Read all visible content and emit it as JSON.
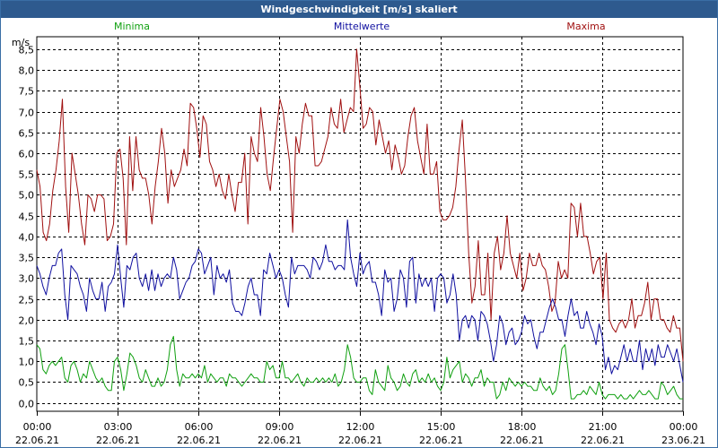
{
  "window": {
    "title": "Windgeschwindigkeit [m/s] skaliert"
  },
  "chart_data": {
    "type": "line",
    "title": "Windgeschwindigkeit [m/s] skaliert",
    "ylabel": "m/s",
    "ylim": [
      -0.2,
      8.8
    ],
    "yticks": [
      0.0,
      0.5,
      1.0,
      1.5,
      2.0,
      2.5,
      3.0,
      3.5,
      4.0,
      4.5,
      5.0,
      5.5,
      6.0,
      6.5,
      7.0,
      7.5,
      8.0,
      8.5
    ],
    "ytick_labels": [
      "0,0",
      "0,5",
      "1,0",
      "1,5",
      "2,0",
      "2,5",
      "3,0",
      "3,5",
      "4,0",
      "4,5",
      "5,0",
      "5,5",
      "6,0",
      "6,5",
      "7,0",
      "7,5",
      "8,0",
      "8,5"
    ],
    "xlim": [
      0,
      24
    ],
    "xticks": [
      0,
      3,
      6,
      9,
      12,
      15,
      18,
      21,
      24
    ],
    "xtick_times": [
      "00:00",
      "03:00",
      "06:00",
      "09:00",
      "12:00",
      "15:00",
      "18:00",
      "21:00",
      "00:00"
    ],
    "xtick_dates": [
      "22.06.21",
      "22.06.21",
      "22.06.21",
      "22.06.21",
      "22.06.21",
      "22.06.21",
      "22.06.21",
      "22.06.21",
      "23.06.21"
    ],
    "grid": true,
    "legend_position": "top",
    "series": [
      {
        "name": "Maxima",
        "color": "#a01010",
        "values": [
          5.6,
          5.2,
          4.1,
          3.9,
          4.3,
          5.1,
          5.6,
          6.3,
          7.3,
          5.2,
          4.1,
          6.0,
          5.5,
          5.0,
          4.3,
          3.8,
          5.0,
          4.9,
          4.6,
          5.0,
          5.0,
          4.9,
          3.9,
          4.0,
          4.3,
          6.0,
          6.1,
          5.4,
          3.8,
          6.4,
          5.1,
          6.4,
          5.6,
          5.4,
          5.4,
          5.0,
          4.3,
          5.2,
          5.8,
          6.6,
          6.0,
          4.8,
          5.6,
          5.2,
          5.4,
          5.6,
          6.1,
          5.7,
          7.2,
          7.1,
          6.6,
          5.9,
          6.9,
          6.7,
          5.8,
          5.6,
          5.2,
          5.5,
          5.1,
          4.9,
          5.5,
          5.0,
          4.6,
          5.3,
          5.3,
          6.0,
          4.3,
          6.4,
          6.0,
          5.8,
          7.1,
          6.4,
          5.5,
          5.1,
          5.9,
          6.6,
          7.3,
          7.0,
          6.4,
          5.8,
          4.1,
          6.4,
          6.0,
          6.7,
          7.2,
          6.9,
          6.9,
          5.7,
          5.7,
          5.8,
          6.1,
          6.4,
          7.1,
          6.7,
          6.6,
          7.3,
          6.5,
          6.8,
          7.1,
          7.0,
          8.5,
          7.6,
          6.6,
          6.7,
          7.1,
          7.0,
          6.2,
          6.8,
          6.4,
          6.0,
          6.3,
          5.6,
          6.2,
          5.9,
          5.5,
          5.7,
          6.4,
          6.9,
          7.1,
          6.3,
          5.9,
          5.5,
          6.7,
          5.5,
          5.5,
          5.8,
          4.6,
          4.4,
          4.4,
          4.5,
          4.7,
          5.2,
          6.1,
          6.8,
          5.4,
          3.6,
          2.4,
          2.8,
          3.9,
          2.6,
          2.6,
          3.6,
          2.0,
          3.6,
          4.0,
          3.2,
          3.6,
          4.5,
          3.6,
          3.3,
          3.0,
          3.6,
          2.7,
          3.0,
          3.6,
          3.3,
          3.3,
          3.6,
          3.3,
          3.2,
          2.8,
          2.2,
          2.4,
          3.4,
          3.0,
          3.2,
          3.0,
          4.8,
          4.7,
          4.0,
          4.8,
          4.0,
          4.0,
          3.6,
          3.1,
          3.4,
          3.5,
          2.5,
          3.6,
          2.0,
          1.8,
          1.7,
          1.9,
          2.0,
          1.8,
          2.0,
          2.5,
          1.8,
          2.1,
          2.1,
          2.4,
          2.9,
          2.0,
          2.5,
          2.5,
          2.0,
          2.0,
          1.8,
          1.7,
          2.1,
          1.8,
          1.8,
          1.0
        ]
      },
      {
        "name": "Mittelwerte",
        "color": "#1010a0",
        "values": [
          3.3,
          3.1,
          2.8,
          2.6,
          3.0,
          3.3,
          3.3,
          3.6,
          3.7,
          2.6,
          2.0,
          3.3,
          3.2,
          3.1,
          2.8,
          2.6,
          2.2,
          3.0,
          2.7,
          2.5,
          2.5,
          2.9,
          2.2,
          2.8,
          2.9,
          3.1,
          3.8,
          3.0,
          2.3,
          3.3,
          3.2,
          3.5,
          3.6,
          3.0,
          2.8,
          3.1,
          2.7,
          3.2,
          2.7,
          3.1,
          2.8,
          3.0,
          3.1,
          3.0,
          3.5,
          3.2,
          2.5,
          2.7,
          2.9,
          3.0,
          3.3,
          3.4,
          3.7,
          3.6,
          3.1,
          3.3,
          3.5,
          2.6,
          3.3,
          3.0,
          3.1,
          2.9,
          3.2,
          2.4,
          2.2,
          2.2,
          2.1,
          2.4,
          2.8,
          3.0,
          2.6,
          2.6,
          2.1,
          3.2,
          3.1,
          3.6,
          3.3,
          3.0,
          3.2,
          3.0,
          2.6,
          2.3,
          3.5,
          3.1,
          3.3,
          3.3,
          3.3,
          3.2,
          3.0,
          3.5,
          3.4,
          3.2,
          3.4,
          3.8,
          3.4,
          3.4,
          3.2,
          3.3,
          3.3,
          3.2,
          4.4,
          3.5,
          3.1,
          2.8,
          3.6,
          3.1,
          3.3,
          3.4,
          2.9,
          2.9,
          2.6,
          2.1,
          3.2,
          2.9,
          3.0,
          2.2,
          2.5,
          3.2,
          3.0,
          2.3,
          3.4,
          3.5,
          2.4,
          3.1,
          2.8,
          3.0,
          2.8,
          3.0,
          2.2,
          3.0,
          3.1,
          3.0,
          2.4,
          2.6,
          3.1,
          2.6,
          1.5,
          2.0,
          2.1,
          1.8,
          2.1,
          2.0,
          1.5,
          2.2,
          2.1,
          1.9,
          1.5,
          1.0,
          1.4,
          2.1,
          1.9,
          1.4,
          1.7,
          1.8,
          1.4,
          1.5,
          1.7,
          2.1,
          1.9,
          2.0,
          1.6,
          1.3,
          1.7,
          1.7,
          2.0,
          2.3,
          2.5,
          2.3,
          2.0,
          2.0,
          1.6,
          2.1,
          2.5,
          2.1,
          2.2,
          1.8,
          1.8,
          2.2,
          1.9,
          1.7,
          1.4,
          1.9,
          1.6,
          0.8,
          1.1,
          0.7,
          0.9,
          0.8,
          1.1,
          1.4,
          1.0,
          1.3,
          1.0,
          1.0,
          1.5,
          0.8,
          1.3,
          1.0,
          1.3,
          0.9,
          1.4,
          1.1,
          1.1,
          1.4,
          1.2,
          1.0,
          1.3,
          0.9,
          0.5
        ]
      },
      {
        "name": "Minima",
        "color": "#10a010",
        "values": [
          1.4,
          1.3,
          0.8,
          0.7,
          0.9,
          1.0,
          0.9,
          1.0,
          1.1,
          0.6,
          0.5,
          0.9,
          1.0,
          0.8,
          0.5,
          0.7,
          0.6,
          1.0,
          0.8,
          0.6,
          0.5,
          0.6,
          0.4,
          0.3,
          0.3,
          1.0,
          1.1,
          0.8,
          0.3,
          0.7,
          1.2,
          1.1,
          0.9,
          0.6,
          0.5,
          0.8,
          0.6,
          0.4,
          0.4,
          0.6,
          0.4,
          0.5,
          0.8,
          1.4,
          1.6,
          0.8,
          0.4,
          0.7,
          0.6,
          0.6,
          0.7,
          0.6,
          0.7,
          0.6,
          0.9,
          0.5,
          0.7,
          0.6,
          0.5,
          0.6,
          0.6,
          0.4,
          0.7,
          0.6,
          0.6,
          0.5,
          0.4,
          0.5,
          0.6,
          0.7,
          0.6,
          0.6,
          0.5,
          0.5,
          1.0,
          0.8,
          0.9,
          0.6,
          0.6,
          1.0,
          0.6,
          0.6,
          0.5,
          0.6,
          0.7,
          0.5,
          0.4,
          0.6,
          0.5,
          0.5,
          0.6,
          0.5,
          0.6,
          0.5,
          0.6,
          0.5,
          0.7,
          0.4,
          0.5,
          0.8,
          1.4,
          1.1,
          0.6,
          0.5,
          0.5,
          0.6,
          0.6,
          0.3,
          0.2,
          0.8,
          0.5,
          0.4,
          0.3,
          0.9,
          0.6,
          0.5,
          0.3,
          0.4,
          0.7,
          0.5,
          0.4,
          0.7,
          0.8,
          0.5,
          0.6,
          0.5,
          0.7,
          0.5,
          0.6,
          0.4,
          0.3,
          0.5,
          1.1,
          0.6,
          0.8,
          0.9,
          1.0,
          0.5,
          0.7,
          0.6,
          0.4,
          0.6,
          0.6,
          0.8,
          0.4,
          0.6,
          0.5,
          0.5,
          0.1,
          0.2,
          0.5,
          0.3,
          0.6,
          0.5,
          0.4,
          0.5,
          0.4,
          0.5,
          0.4,
          0.4,
          0.3,
          0.3,
          0.6,
          0.4,
          0.3,
          0.4,
          0.2,
          0.3,
          0.7,
          1.3,
          1.4,
          0.8,
          0.1,
          0.1,
          0.2,
          0.2,
          0.3,
          0.2,
          0.4,
          0.3,
          0.2,
          0.5,
          0.2,
          0.1,
          0.2,
          0.2,
          0.2,
          0.1,
          0.2,
          0.1,
          0.1,
          0.2,
          0.1,
          0.2,
          0.3,
          0.2,
          0.2,
          0.3,
          0.2,
          0.1,
          0.1,
          0.5,
          0.4,
          0.2,
          0.3,
          0.4,
          0.2,
          0.1,
          0.1
        ]
      }
    ]
  }
}
